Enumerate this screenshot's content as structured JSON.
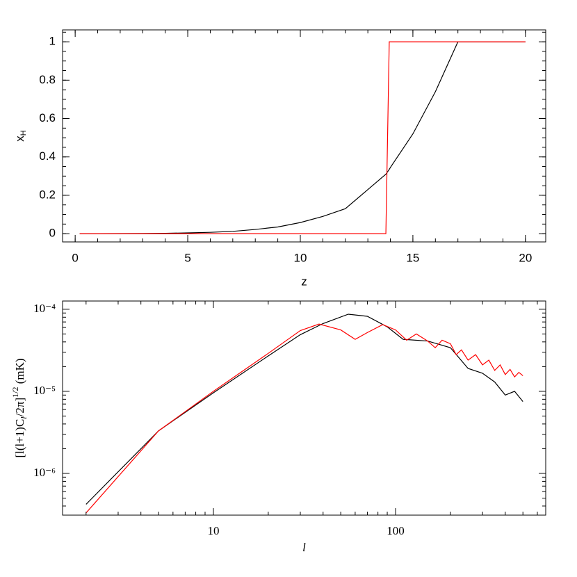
{
  "chart_data": [
    {
      "type": "line",
      "xlabel": "z",
      "ylabel": "x",
      "ylabel_subscript": "H",
      "xscale": "linear",
      "yscale": "linear",
      "xlim": [
        -0.56,
        20.9
      ],
      "ylim": [
        -0.043,
        1.062
      ],
      "xticks": [
        0,
        5,
        10,
        15,
        20
      ],
      "yticks": [
        0,
        0.2,
        0.4,
        0.6,
        0.8,
        1
      ],
      "x_minor_per_major": 5,
      "y_minor_per_major": 4,
      "x": [
        0.2,
        1,
        2,
        3,
        4,
        5,
        6,
        7,
        8,
        9,
        10,
        11,
        12,
        13,
        13.8,
        13.95,
        14,
        15,
        16,
        17,
        18,
        19,
        20
      ],
      "series": [
        {
          "color": "#000000",
          "values": [
            0,
            0,
            0.0005,
            0.001,
            0.002,
            0.004,
            0.007,
            0.012,
            0.022,
            0.035,
            0.058,
            0.09,
            0.13,
            0.23,
            0.31,
            0.335,
            0.345,
            0.52,
            0.74,
            1,
            1,
            1,
            1
          ]
        },
        {
          "color": "#ff0000",
          "values": [
            0,
            0,
            0,
            0,
            0,
            0,
            0,
            0,
            0,
            0,
            0,
            0,
            0,
            0,
            0,
            1,
            1,
            1,
            1,
            1,
            1,
            1,
            1
          ]
        }
      ]
    },
    {
      "type": "line",
      "xlabel": "l",
      "xlabel_italic": true,
      "ylabel_parts": [
        {
          "text": "[l(l+1)C",
          "style": "normal"
        },
        {
          "text": "l",
          "style": "sub"
        },
        {
          "text": "/2π]",
          "style": "normal"
        },
        {
          "text": "1/2",
          "style": "sup"
        },
        {
          "text": " (mK)",
          "style": "normal"
        }
      ],
      "xscale": "log",
      "yscale": "log",
      "minor_ticks": true,
      "xlim": [
        1.486,
        667
      ],
      "ylim": [
        3.1e-07,
        0.000126
      ],
      "xticks": [
        10,
        100
      ],
      "yticks": [
        {
          "value": 1e-06,
          "label": "10⁻⁶"
        },
        {
          "value": 1e-05,
          "label": "10⁻⁵"
        },
        {
          "value": 0.0001,
          "label": "10⁻⁴"
        }
      ],
      "series": [
        {
          "color": "#000000",
          "x": [
            2,
            5,
            10,
            20,
            30,
            40,
            55,
            70,
            90,
            110,
            150,
            200,
            250,
            300,
            350,
            400,
            450,
            500
          ],
          "values": [
            4.2e-07,
            3.3e-06,
            9.6e-06,
            2.7e-05,
            4.9e-05,
            6.7e-05,
            8.7e-05,
            8.2e-05,
            6.1e-05,
            4.3e-05,
            4.1e-05,
            3.4e-05,
            1.9e-05,
            1.66e-05,
            1.3e-05,
            9e-06,
            1e-05,
            7.5e-06
          ]
        },
        {
          "color": "#ff0000",
          "x": [
            2,
            5,
            10,
            20,
            30,
            38,
            50,
            60,
            70,
            85,
            100,
            115,
            130,
            150,
            165,
            180,
            200,
            215,
            230,
            250,
            275,
            300,
            325,
            350,
            375,
            400,
            425,
            450,
            475,
            500
          ],
          "values": [
            3.3e-07,
            3.3e-06,
            1e-05,
            2.9e-05,
            5.5e-05,
            6.6e-05,
            5.6e-05,
            4.3e-05,
            5.2e-05,
            6.5e-05,
            5.6e-05,
            4.2e-05,
            5e-05,
            4.1e-05,
            3.4e-05,
            4.2e-05,
            3.8e-05,
            2.8e-05,
            3.2e-05,
            2.4e-05,
            2.8e-05,
            2.1e-05,
            2.4e-05,
            1.8e-05,
            2.1e-05,
            1.6e-05,
            1.85e-05,
            1.5e-05,
            1.7e-05,
            1.55e-05
          ]
        }
      ]
    }
  ]
}
